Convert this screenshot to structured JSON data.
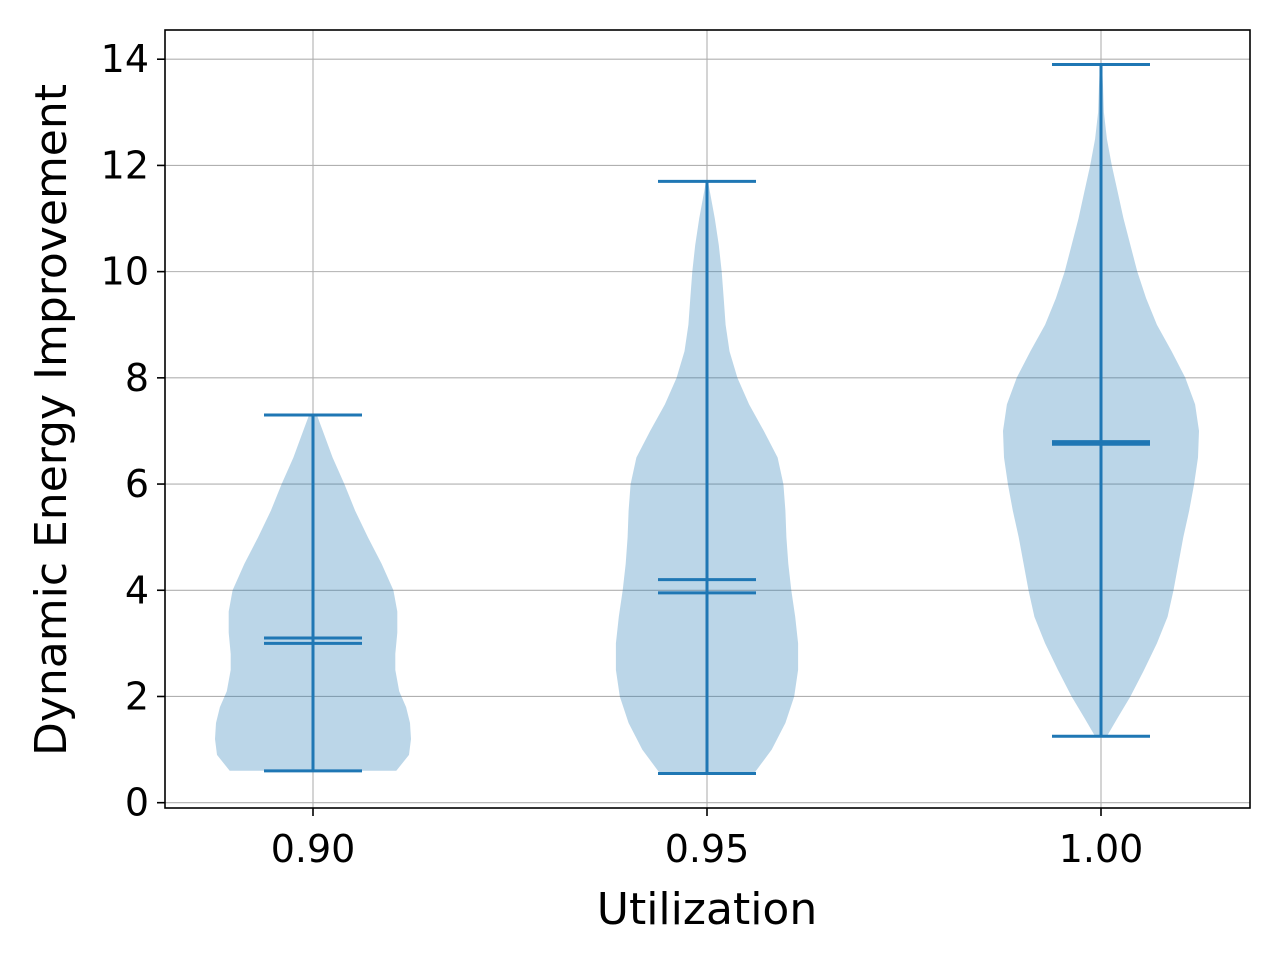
{
  "chart_data": {
    "type": "violin",
    "xlabel": "Utilization",
    "ylabel": "Dynamic Energy Improvement",
    "categories": [
      "0.90",
      "0.95",
      "1.00"
    ],
    "y_ticks": [
      "0",
      "2",
      "4",
      "6",
      "8",
      "10",
      "12",
      "14"
    ],
    "ylim": [
      -0.1,
      14.55
    ],
    "grid": true,
    "violins": [
      {
        "category": "0.90",
        "min": 0.6,
        "max": 7.3,
        "mean": 3.1,
        "median": 3.0,
        "profile": [
          [
            0.6,
            0.85
          ],
          [
            0.9,
            0.98
          ],
          [
            1.2,
            1.0
          ],
          [
            1.5,
            0.99
          ],
          [
            1.8,
            0.95
          ],
          [
            2.1,
            0.88
          ],
          [
            2.5,
            0.84
          ],
          [
            2.8,
            0.84
          ],
          [
            3.2,
            0.86
          ],
          [
            3.6,
            0.86
          ],
          [
            4.0,
            0.82
          ],
          [
            4.5,
            0.7
          ],
          [
            5.0,
            0.56
          ],
          [
            5.5,
            0.43
          ],
          [
            6.0,
            0.32
          ],
          [
            6.5,
            0.2
          ],
          [
            7.0,
            0.1
          ],
          [
            7.3,
            0.04
          ]
        ]
      },
      {
        "category": "0.95",
        "min": 0.55,
        "max": 11.7,
        "mean": 4.2,
        "median": 3.95,
        "profile": [
          [
            0.55,
            0.48
          ],
          [
            1.0,
            0.66
          ],
          [
            1.5,
            0.8
          ],
          [
            2.0,
            0.89
          ],
          [
            2.5,
            0.93
          ],
          [
            3.0,
            0.93
          ],
          [
            3.5,
            0.9
          ],
          [
            4.0,
            0.86
          ],
          [
            4.5,
            0.83
          ],
          [
            5.0,
            0.81
          ],
          [
            5.5,
            0.8
          ],
          [
            6.0,
            0.78
          ],
          [
            6.5,
            0.72
          ],
          [
            7.0,
            0.58
          ],
          [
            7.5,
            0.43
          ],
          [
            8.0,
            0.31
          ],
          [
            8.5,
            0.23
          ],
          [
            9.0,
            0.19
          ],
          [
            9.5,
            0.17
          ],
          [
            10.0,
            0.15
          ],
          [
            10.5,
            0.12
          ],
          [
            11.0,
            0.08
          ],
          [
            11.4,
            0.04
          ],
          [
            11.7,
            0.01
          ]
        ]
      },
      {
        "category": "1.00",
        "min": 1.25,
        "max": 13.9,
        "mean": 6.8,
        "median": 6.75,
        "profile": [
          [
            1.25,
            0.06
          ],
          [
            1.6,
            0.17
          ],
          [
            2.0,
            0.3
          ],
          [
            2.5,
            0.44
          ],
          [
            3.0,
            0.57
          ],
          [
            3.5,
            0.68
          ],
          [
            4.0,
            0.74
          ],
          [
            4.5,
            0.79
          ],
          [
            5.0,
            0.84
          ],
          [
            5.5,
            0.9
          ],
          [
            6.0,
            0.95
          ],
          [
            6.5,
            0.99
          ],
          [
            7.0,
            1.0
          ],
          [
            7.5,
            0.96
          ],
          [
            8.0,
            0.86
          ],
          [
            8.5,
            0.72
          ],
          [
            9.0,
            0.57
          ],
          [
            9.5,
            0.46
          ],
          [
            10.0,
            0.37
          ],
          [
            10.5,
            0.3
          ],
          [
            11.0,
            0.23
          ],
          [
            11.5,
            0.17
          ],
          [
            12.0,
            0.11
          ],
          [
            12.5,
            0.06
          ],
          [
            13.0,
            0.03
          ],
          [
            13.5,
            0.02
          ],
          [
            13.9,
            0.01
          ]
        ]
      }
    ],
    "colors": {
      "body": "#1f77b4",
      "body_opacity": 0.3,
      "lines": "#1f77b4",
      "grid": "#b0b0b0"
    }
  }
}
